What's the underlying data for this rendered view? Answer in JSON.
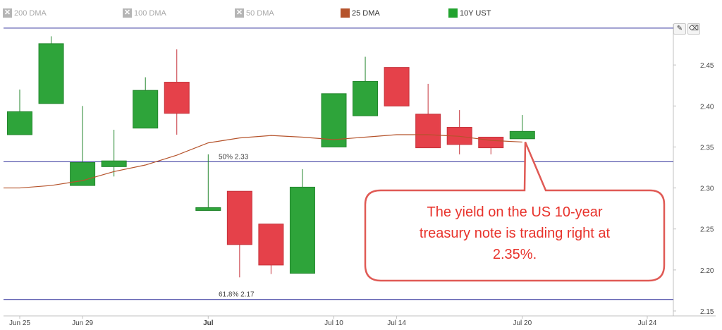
{
  "legend": [
    {
      "label": "200 DMA",
      "state": "off",
      "color": "#b5b5b5"
    },
    {
      "label": "100 DMA",
      "state": "off",
      "color": "#b5b5b5"
    },
    {
      "label": "50 DMA",
      "state": "off",
      "color": "#b5b5b5"
    },
    {
      "label": "25 DMA",
      "state": "on",
      "color": "#b5532b"
    },
    {
      "label": "10Y UST",
      "state": "on",
      "color": "#22a32f"
    }
  ],
  "chart_data": {
    "type": "candlestick",
    "title": "",
    "series_name": "10Y UST",
    "y_ticks": [
      "2.15",
      "2.20",
      "2.25",
      "2.30",
      "2.35",
      "2.40",
      "2.45"
    ],
    "ylim": [
      2.15,
      2.5
    ],
    "x_ticks": [
      "Jun 25",
      "Jun 29",
      "Jul",
      "Jul 10",
      "Jul 14",
      "Jul 20",
      "Jul 24"
    ],
    "grid": false,
    "candles": [
      {
        "open": 2.365,
        "close": 2.393,
        "high": 2.42,
        "low": 2.365
      },
      {
        "open": 2.403,
        "close": 2.476,
        "high": 2.485,
        "low": 2.403
      },
      {
        "open": 2.303,
        "close": 2.331,
        "high": 2.4,
        "low": 2.303
      },
      {
        "open": 2.326,
        "close": 2.333,
        "high": 2.371,
        "low": 2.314
      },
      {
        "open": 2.373,
        "close": 2.419,
        "high": 2.435,
        "low": 2.373
      },
      {
        "open": 2.429,
        "close": 2.391,
        "high": 2.469,
        "low": 2.365
      },
      {
        "open": 2.273,
        "close": 2.276,
        "high": 2.341,
        "low": 2.273
      },
      {
        "open": 2.296,
        "close": 2.231,
        "high": 2.296,
        "low": 2.191
      },
      {
        "open": 2.256,
        "close": 2.206,
        "high": 2.256,
        "low": 2.195
      },
      {
        "open": 2.196,
        "close": 2.301,
        "high": 2.323,
        "low": 2.196
      },
      {
        "open": 2.35,
        "close": 2.415,
        "high": 2.415,
        "low": 2.35
      },
      {
        "open": 2.388,
        "close": 2.43,
        "high": 2.46,
        "low": 2.388
      },
      {
        "open": 2.447,
        "close": 2.4,
        "high": 2.447,
        "low": 2.4
      },
      {
        "open": 2.39,
        "close": 2.349,
        "high": 2.427,
        "low": 2.349
      },
      {
        "open": 2.374,
        "close": 2.353,
        "high": 2.395,
        "low": 2.341
      },
      {
        "open": 2.362,
        "close": 2.349,
        "high": 2.362,
        "low": 2.341
      },
      {
        "open": 2.36,
        "close": 2.369,
        "high": 2.389,
        "low": 2.36
      }
    ],
    "dma25": [
      2.3,
      2.303,
      2.309,
      2.32,
      2.328,
      2.34,
      2.355,
      2.361,
      2.364,
      2.362,
      2.359,
      2.362,
      2.365,
      2.365,
      2.363,
      2.358,
      2.356
    ],
    "fib_levels": [
      {
        "label": "50% 2.33",
        "value": 2.332
      },
      {
        "label": "61.8% 2.17",
        "value": 2.164
      }
    ],
    "top_line": 2.495,
    "annotation": {
      "lines": [
        "The yield on the US 10-year",
        "treasury note is trading right at",
        "2.35%."
      ],
      "target_value": 2.356
    }
  },
  "tools": {
    "edit_icon": "pencil-icon",
    "erase_icon": "eraser-icon"
  }
}
